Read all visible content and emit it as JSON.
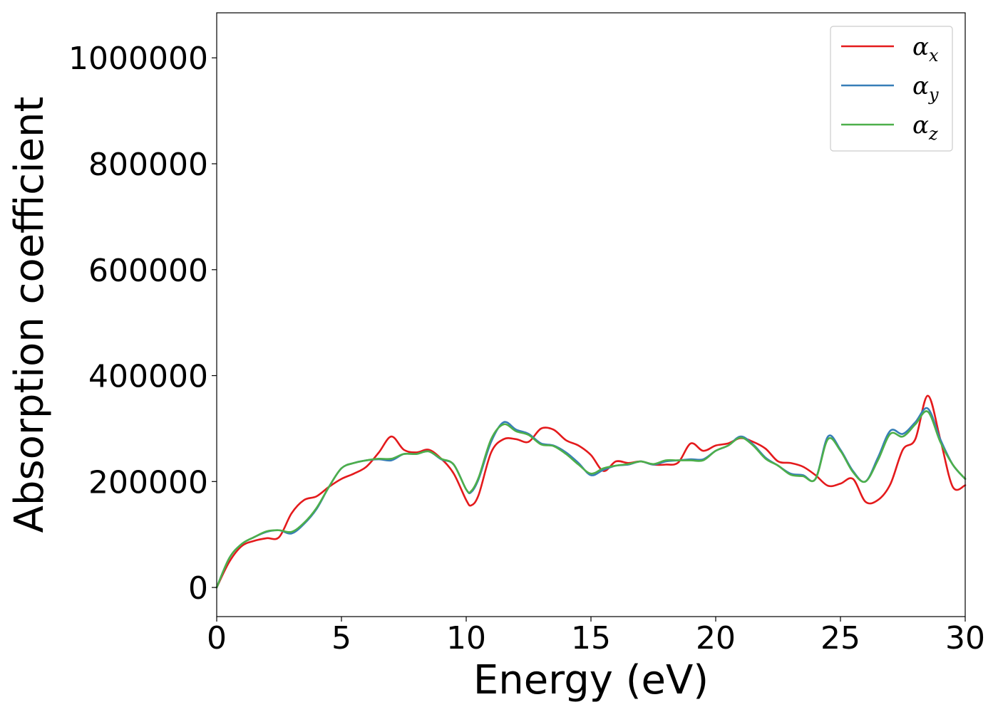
{
  "chart_data": {
    "type": "line",
    "xlabel": "Energy (eV)",
    "ylabel": "Absorption coefficient",
    "xlim": [
      0,
      30
    ],
    "ylim": [
      -55000,
      1085000
    ],
    "xticks": [
      "0",
      "5",
      "10",
      "15",
      "20",
      "25",
      "30"
    ],
    "yticks": [
      "0",
      "200000",
      "400000",
      "600000",
      "800000",
      "1000000"
    ],
    "grid": false,
    "legend_position": "top-right",
    "series": [
      {
        "name": "αx",
        "legend_symbol": "α",
        "legend_subscript": "x",
        "color": "#e41a1c",
        "x": [
          0,
          0.5,
          1.0,
          1.5,
          2.0,
          2.5,
          3.0,
          3.5,
          4.0,
          4.5,
          5.0,
          5.5,
          6.0,
          6.5,
          7.0,
          7.5,
          8.0,
          8.5,
          9.0,
          9.5,
          10.0,
          10.2,
          10.5,
          11.0,
          11.5,
          12.0,
          12.5,
          13.0,
          13.5,
          14.0,
          14.5,
          15.0,
          15.5,
          16.0,
          16.5,
          17.0,
          17.5,
          18.0,
          18.5,
          19.0,
          19.5,
          20.0,
          20.5,
          21.0,
          21.5,
          22.0,
          22.5,
          23.0,
          23.5,
          24.0,
          24.5,
          25.0,
          25.5,
          26.0,
          26.5,
          27.0,
          27.5,
          28.0,
          28.5,
          29.0,
          29.5,
          30.0
        ],
        "y": [
          0,
          48000,
          78000,
          88000,
          93000,
          95000,
          140000,
          165000,
          172000,
          190000,
          205000,
          215000,
          228000,
          255000,
          285000,
          260000,
          255000,
          260000,
          243000,
          215000,
          165000,
          155000,
          175000,
          255000,
          280000,
          280000,
          275000,
          300000,
          298000,
          278000,
          268000,
          250000,
          220000,
          238000,
          235000,
          238000,
          232000,
          232000,
          236000,
          272000,
          258000,
          268000,
          272000,
          282000,
          275000,
          262000,
          238000,
          235000,
          228000,
          212000,
          192000,
          196000,
          205000,
          162000,
          165000,
          195000,
          260000,
          280000,
          362000,
          280000,
          190000,
          193000
        ]
      },
      {
        "name": "αy",
        "legend_symbol": "α",
        "legend_subscript": "y",
        "color": "#377eb8",
        "x": [
          0,
          0.5,
          1.0,
          1.5,
          2.0,
          2.5,
          3.0,
          3.5,
          4.0,
          4.5,
          5.0,
          5.5,
          6.0,
          6.5,
          7.0,
          7.5,
          8.0,
          8.5,
          9.0,
          9.5,
          10.0,
          10.2,
          10.5,
          11.0,
          11.5,
          12.0,
          12.5,
          13.0,
          13.5,
          14.0,
          14.5,
          15.0,
          15.5,
          16.0,
          16.5,
          17.0,
          17.5,
          18.0,
          18.5,
          19.0,
          19.5,
          20.0,
          20.5,
          21.0,
          21.5,
          22.0,
          22.5,
          23.0,
          23.5,
          24.0,
          24.5,
          25.0,
          25.5,
          26.0,
          26.5,
          27.0,
          27.5,
          28.0,
          28.5,
          29.0,
          29.5,
          30.0
        ],
        "y": [
          0,
          55000,
          82000,
          95000,
          105000,
          108000,
          102000,
          120000,
          148000,
          190000,
          225000,
          235000,
          240000,
          242000,
          240000,
          252000,
          252000,
          257000,
          242000,
          232000,
          185000,
          180000,
          205000,
          275000,
          312000,
          298000,
          290000,
          272000,
          268000,
          255000,
          235000,
          212000,
          222000,
          230000,
          232000,
          238000,
          232000,
          238000,
          240000,
          242000,
          242000,
          258000,
          268000,
          285000,
          270000,
          245000,
          230000,
          215000,
          212000,
          205000,
          285000,
          260000,
          220000,
          200000,
          245000,
          296000,
          290000,
          312000,
          338000,
          280000,
          232000,
          205000
        ]
      },
      {
        "name": "αz",
        "legend_symbol": "α",
        "legend_subscript": "z",
        "color": "#4daf4a",
        "x": [
          0,
          0.5,
          1.0,
          1.5,
          2.0,
          2.5,
          3.0,
          3.5,
          4.0,
          4.5,
          5.0,
          5.5,
          6.0,
          6.5,
          7.0,
          7.5,
          8.0,
          8.5,
          9.0,
          9.5,
          10.0,
          10.2,
          10.5,
          11.0,
          11.5,
          12.0,
          12.5,
          13.0,
          13.5,
          14.0,
          14.5,
          15.0,
          15.5,
          16.0,
          16.5,
          17.0,
          17.5,
          18.0,
          18.5,
          19.0,
          19.5,
          20.0,
          20.5,
          21.0,
          21.5,
          22.0,
          22.5,
          23.0,
          23.5,
          24.0,
          24.5,
          25.0,
          25.5,
          26.0,
          26.5,
          27.0,
          27.5,
          28.0,
          28.5,
          29.0,
          29.5,
          30.0
        ],
        "y": [
          0,
          55000,
          82000,
          95000,
          106000,
          108000,
          105000,
          122000,
          150000,
          190000,
          225000,
          235000,
          240000,
          243000,
          243000,
          252000,
          252000,
          257000,
          243000,
          232000,
          185000,
          182000,
          208000,
          280000,
          308000,
          295000,
          288000,
          270000,
          267000,
          252000,
          232000,
          215000,
          225000,
          230000,
          233000,
          238000,
          233000,
          240000,
          240000,
          240000,
          240000,
          258000,
          268000,
          283000,
          268000,
          243000,
          230000,
          213000,
          210000,
          205000,
          280000,
          258000,
          218000,
          200000,
          240000,
          290000,
          285000,
          308000,
          332000,
          275000,
          232000,
          205000
        ]
      }
    ]
  }
}
